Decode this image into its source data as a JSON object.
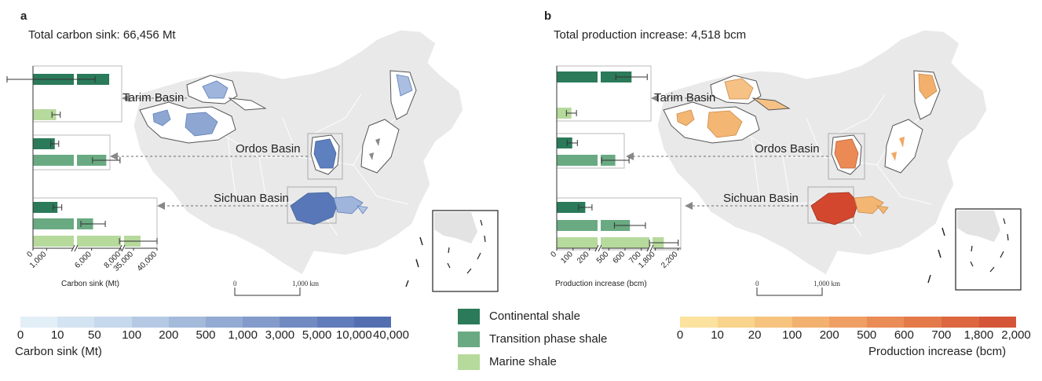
{
  "panel_a": {
    "letter": "a",
    "total": "Total carbon sink: 66,456 Mt",
    "basins": [
      "Tarim Basin",
      "Ordos Basin",
      "Sichuan Basin"
    ],
    "axis_title": "Carbon sink (Mt)",
    "axis_ticks": [
      "0",
      "1,000",
      "6,000",
      "8,000",
      "35,000",
      "40,000"
    ],
    "scale_label": "1,000 km",
    "scale_zero": "0",
    "colorbar_ticks": [
      "0",
      "10",
      "50",
      "100",
      "200",
      "500",
      "1,000",
      "3,000",
      "5,000",
      "10,000",
      "40,000"
    ],
    "colorbar_title": "Carbon sink (Mt)",
    "colorbar_colors": [
      "#e3eff7",
      "#d3e3f1",
      "#c6d8ec",
      "#b5c9e4",
      "#a4badb",
      "#93aad3",
      "#829bcb",
      "#718bc2",
      "#617cba",
      "#536fb1"
    ]
  },
  "panel_b": {
    "letter": "b",
    "total": "Total production increase: 4,518 bcm",
    "basins": [
      "Tarim Basin",
      "Ordos Basin",
      "Sichuan Basin"
    ],
    "axis_title": "Production increase (bcm)",
    "axis_ticks": [
      "0",
      "100",
      "200",
      "500",
      "600",
      "700",
      "1,800",
      "2,200"
    ],
    "scale_label": "1,000 km",
    "scale_zero": "0",
    "colorbar_ticks": [
      "0",
      "10",
      "20",
      "100",
      "200",
      "500",
      "600",
      "700",
      "1,800",
      "2,000"
    ],
    "colorbar_title": "Production increase (bcm)",
    "colorbar_colors": [
      "#fbe29e",
      "#f9d48d",
      "#f6c47e",
      "#f3b170",
      "#ef9f63",
      "#ea8c56",
      "#e47a4a",
      "#dc6740",
      "#d45537"
    ]
  },
  "legend": {
    "items": [
      {
        "label": "Continental shale",
        "color": "#2b7a5a"
      },
      {
        "label": "Transition phase shale",
        "color": "#6aaa82"
      },
      {
        "label": "Marine shale",
        "color": "#b6d99c"
      }
    ]
  },
  "chart_data": [
    {
      "type": "bar",
      "title": "Total carbon sink: 66,456 Mt",
      "xlabel": "Carbon sink (Mt)",
      "categories": [
        "Tarim Basin",
        "Ordos Basin",
        "Sichuan Basin"
      ],
      "series": [
        {
          "name": "Continental shale",
          "values": [
            7200,
            1600,
            1800
          ]
        },
        {
          "name": "Transition phase shale",
          "values": [
            0,
            7000,
            6100
          ]
        },
        {
          "name": "Marine shale",
          "values": [
            1700,
            0,
            36500
          ]
        }
      ]
    },
    {
      "type": "bar",
      "title": "Total production increase: 4,518 bcm",
      "xlabel": "Production increase (bcm)",
      "categories": [
        "Tarim Basin",
        "Ordos Basin",
        "Sichuan Basin"
      ],
      "series": [
        {
          "name": "Continental shale",
          "values": [
            640,
            95,
            175
          ]
        },
        {
          "name": "Transition phase shale",
          "values": [
            0,
            540,
            630
          ]
        },
        {
          "name": "Marine shale",
          "values": [
            90,
            0,
            1950
          ]
        }
      ]
    }
  ]
}
